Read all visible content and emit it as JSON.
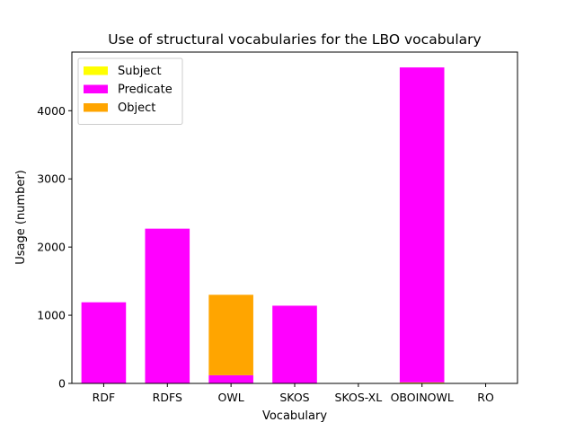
{
  "chart_data": {
    "type": "bar",
    "stacked": true,
    "title": "Use of structural vocabularies for the LBO vocabulary",
    "xlabel": "Vocabulary",
    "ylabel": "Usage (number)",
    "categories": [
      "RDF",
      "RDFS",
      "OWL",
      "SKOS",
      "SKOS-XL",
      "OBOINOWL",
      "RO"
    ],
    "series": [
      {
        "name": "Subject",
        "color": "#ffff00",
        "values": [
          0,
          0,
          0,
          0,
          0,
          15,
          0
        ]
      },
      {
        "name": "Predicate",
        "color": "#ff00ff",
        "values": [
          1190,
          2270,
          120,
          1140,
          0,
          4620,
          0
        ]
      },
      {
        "name": "Object",
        "color": "#ffa500",
        "values": [
          0,
          0,
          1180,
          0,
          0,
          0,
          0
        ]
      }
    ],
    "ylim": [
      0,
      4860
    ],
    "yticks": [
      0,
      1000,
      2000,
      3000,
      4000
    ],
    "legend_position": "top-left",
    "grid": false
  }
}
